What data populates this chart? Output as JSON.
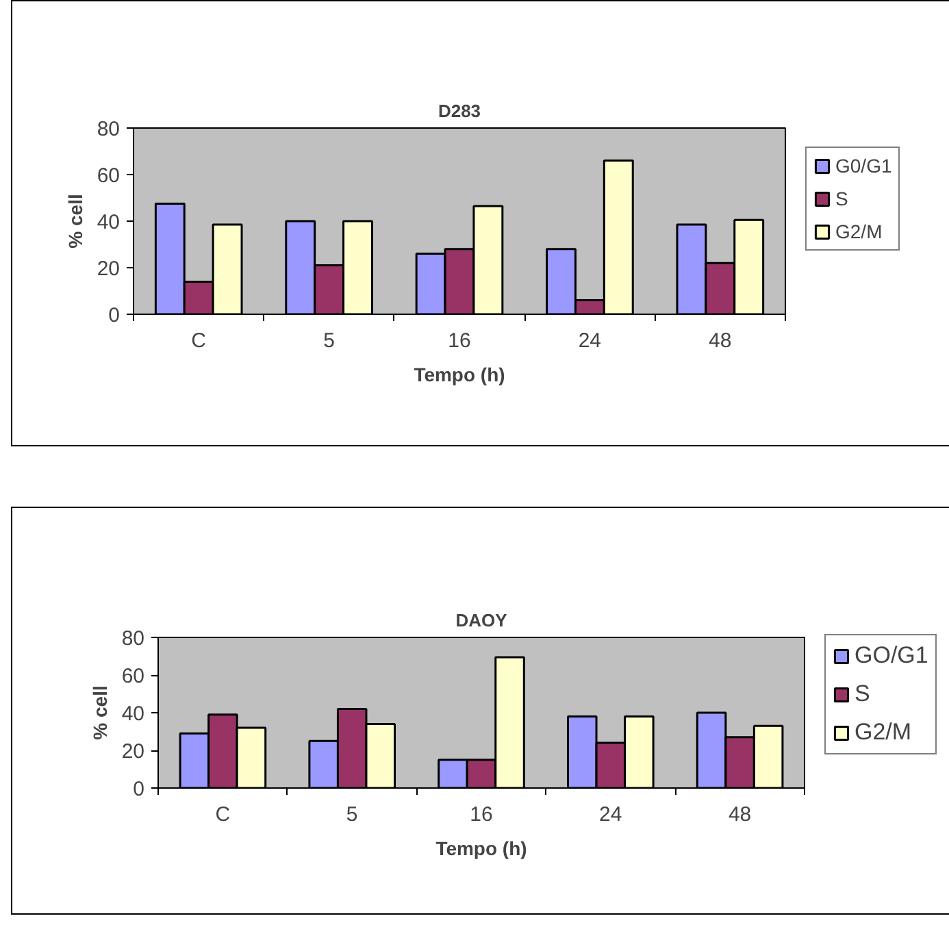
{
  "chart_data": [
    {
      "type": "bar",
      "title": "D283",
      "xlabel": "Tempo (h)",
      "ylabel": "% cell",
      "categories": [
        "C",
        "5",
        "16",
        "24",
        "48"
      ],
      "ylim": [
        0,
        80
      ],
      "yticks": [
        0,
        20,
        40,
        60,
        80
      ],
      "grid": false,
      "legend": "right",
      "series": [
        {
          "name": "G0/G1",
          "color": "#9999ff",
          "values": [
            47.5,
            40,
            26,
            28,
            38.5
          ]
        },
        {
          "name": "S",
          "color": "#993366",
          "values": [
            14,
            21,
            28,
            6,
            22
          ]
        },
        {
          "name": "G2/M",
          "color": "#ffffcc",
          "values": [
            38.5,
            40,
            46.5,
            66,
            40.5
          ]
        }
      ]
    },
    {
      "type": "bar",
      "title": "DAOY",
      "xlabel": "Tempo (h)",
      "ylabel": "% cell",
      "categories": [
        "C",
        "5",
        "16",
        "24",
        "48"
      ],
      "ylim": [
        0,
        80
      ],
      "yticks": [
        0,
        20,
        40,
        60,
        80
      ],
      "grid": false,
      "legend": "right",
      "series": [
        {
          "name": "GO/G1",
          "color": "#9999ff",
          "values": [
            29,
            25,
            15,
            38,
            40
          ]
        },
        {
          "name": "S",
          "color": "#993366",
          "values": [
            39,
            42,
            15,
            24,
            27
          ]
        },
        {
          "name": "G2/M",
          "color": "#ffffcc",
          "values": [
            32,
            34,
            69.5,
            38,
            33
          ]
        }
      ]
    }
  ]
}
